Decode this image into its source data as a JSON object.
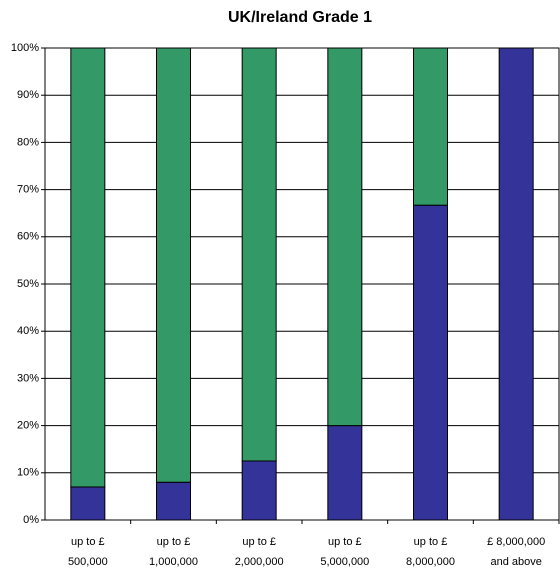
{
  "chart_data": {
    "type": "stacked_bar",
    "title": "UK/Ireland Grade 1",
    "categories": [
      [
        "up to £",
        "500,000"
      ],
      [
        "up to £",
        "1,000,000"
      ],
      [
        "up to £",
        "2,000,000"
      ],
      [
        "up to £",
        "5,000,000"
      ],
      [
        "up to £",
        "8,000,000"
      ],
      [
        "£ 8,000,000",
        "and above"
      ]
    ],
    "series": [
      {
        "color": "#333399",
        "values": [
          7,
          8,
          12.5,
          20,
          66.7,
          100
        ]
      },
      {
        "color": "#339966",
        "values": [
          93,
          92,
          87.5,
          80,
          33.3,
          0
        ]
      }
    ],
    "ylim": [
      0,
      100
    ],
    "yticks": [
      {
        "value": 0,
        "label": "0%"
      },
      {
        "value": 10,
        "label": "10%"
      },
      {
        "value": 20,
        "label": "20%"
      },
      {
        "value": 30,
        "label": "30%"
      },
      {
        "value": 40,
        "label": "40%"
      },
      {
        "value": 50,
        "label": "50%"
      },
      {
        "value": 60,
        "label": "60%"
      },
      {
        "value": 70,
        "label": "70%"
      },
      {
        "value": 80,
        "label": "80%"
      },
      {
        "value": 90,
        "label": "90%"
      },
      {
        "value": 100,
        "label": "100%"
      }
    ],
    "grid": true
  }
}
